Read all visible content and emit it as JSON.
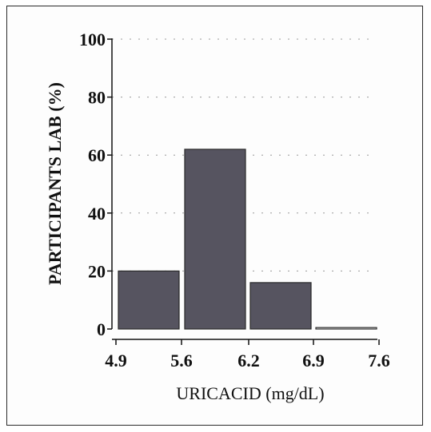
{
  "chart_data": {
    "type": "bar",
    "title": "",
    "xlabel": "URICACID (mg/dL)",
    "ylabel": "PARTICIPANTS LAB (%)",
    "x_ticks": [
      "4.9",
      "5.6",
      "6.2",
      "6.9",
      "7.6"
    ],
    "y_ticks": [
      "0",
      "20",
      "40",
      "60",
      "80",
      "100"
    ],
    "ylim": [
      0,
      100
    ],
    "bins": [
      {
        "from": "4.9",
        "to": "5.6",
        "value": 20
      },
      {
        "from": "5.6",
        "to": "6.2",
        "value": 62
      },
      {
        "from": "6.2",
        "to": "6.9",
        "value": 16
      },
      {
        "from": "6.9",
        "to": "7.6",
        "value": 0.5
      }
    ],
    "grid": "dotted horizontal",
    "bar_color": "#565460"
  }
}
